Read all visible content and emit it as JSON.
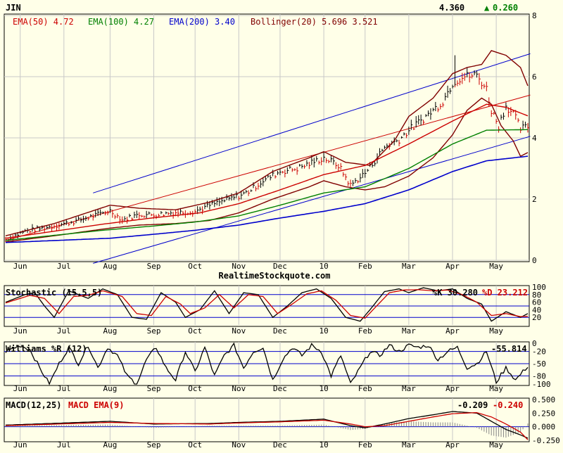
{
  "header": {
    "symbol": "JIN",
    "last_price": "4.360",
    "change_arrow": "▲",
    "change": "0.260"
  },
  "colors": {
    "background": "#FFFFE8",
    "grid": "#C8C8C8",
    "price_bars": "#000000",
    "down_bars": "#CC0000",
    "ema50": "#CC0000",
    "ema100": "#008000",
    "ema200": "#0000CC",
    "bollinger": "#800000",
    "channel": "#0000CC",
    "stoch_k": "#000000",
    "stoch_d": "#CC0000",
    "ref_line": "#0000CC",
    "macd": "#000000",
    "macd_ema": "#CC0000",
    "histogram": "#888888",
    "up_arrow": "#008000"
  },
  "watermark": "RealtimeStockquote.com",
  "x_labels": [
    "Jun",
    "Jul",
    "Aug",
    "Sep",
    "Oct",
    "Nov",
    "Dec",
    "10",
    "Feb",
    "Mar",
    "Apr",
    "May"
  ],
  "x_label_index": [
    6,
    24,
    43,
    61,
    78,
    96,
    113,
    131,
    148,
    166,
    184,
    202
  ],
  "chart_data": [
    {
      "panel": "price",
      "type": "line",
      "legend": [
        {
          "text": "EMA(50) 4.72",
          "color": "#CC0000"
        },
        {
          "text": "EMA(100) 4.27",
          "color": "#008000"
        },
        {
          "text": "EMA(200) 3.40",
          "color": "#0000CC"
        },
        {
          "text": "Bollinger(20) 5.696 3.521",
          "color": "#800000"
        }
      ],
      "ylim": [
        0,
        8
      ],
      "y_ticks": [
        0,
        2,
        4,
        6,
        8
      ],
      "n_points": 216,
      "price_keys": [
        [
          0,
          0.68
        ],
        [
          8,
          0.95
        ],
        [
          20,
          1.12
        ],
        [
          30,
          1.3
        ],
        [
          43,
          1.62
        ],
        [
          48,
          1.32
        ],
        [
          55,
          1.5
        ],
        [
          61,
          1.48
        ],
        [
          68,
          1.55
        ],
        [
          78,
          1.6
        ],
        [
          84,
          1.8
        ],
        [
          90,
          1.95
        ],
        [
          96,
          2.1
        ],
        [
          100,
          2.25
        ],
        [
          106,
          2.6
        ],
        [
          113,
          2.9
        ],
        [
          120,
          3.0
        ],
        [
          128,
          3.25
        ],
        [
          131,
          3.35
        ],
        [
          137,
          3.1
        ],
        [
          142,
          2.45
        ],
        [
          148,
          2.85
        ],
        [
          152,
          3.25
        ],
        [
          156,
          3.7
        ],
        [
          162,
          3.95
        ],
        [
          166,
          4.25
        ],
        [
          170,
          4.5
        ],
        [
          176,
          4.9
        ],
        [
          180,
          5.2
        ],
        [
          184,
          5.8
        ],
        [
          188,
          6.0
        ],
        [
          194,
          6.05
        ],
        [
          198,
          5.6
        ],
        [
          200,
          4.9
        ],
        [
          203,
          4.4
        ],
        [
          206,
          5.05
        ],
        [
          209,
          4.8
        ],
        [
          212,
          4.3
        ],
        [
          215,
          4.36
        ]
      ],
      "ema50_keys": [
        [
          0,
          0.72
        ],
        [
          40,
          1.18
        ],
        [
          60,
          1.38
        ],
        [
          80,
          1.55
        ],
        [
          96,
          1.85
        ],
        [
          113,
          2.3
        ],
        [
          131,
          2.8
        ],
        [
          148,
          3.1
        ],
        [
          166,
          3.8
        ],
        [
          184,
          4.55
        ],
        [
          198,
          5.1
        ],
        [
          206,
          5.0
        ],
        [
          215,
          4.72
        ]
      ],
      "ema100_keys": [
        [
          0,
          0.65
        ],
        [
          40,
          0.98
        ],
        [
          61,
          1.12
        ],
        [
          78,
          1.25
        ],
        [
          96,
          1.45
        ],
        [
          113,
          1.8
        ],
        [
          131,
          2.2
        ],
        [
          148,
          2.4
        ],
        [
          166,
          3.0
        ],
        [
          184,
          3.8
        ],
        [
          198,
          4.25
        ],
        [
          215,
          4.27
        ]
      ],
      "ema200_keys": [
        [
          0,
          0.58
        ],
        [
          43,
          0.72
        ],
        [
          61,
          0.85
        ],
        [
          78,
          0.98
        ],
        [
          96,
          1.15
        ],
        [
          113,
          1.38
        ],
        [
          131,
          1.6
        ],
        [
          148,
          1.85
        ],
        [
          166,
          2.3
        ],
        [
          184,
          2.9
        ],
        [
          198,
          3.25
        ],
        [
          215,
          3.4
        ]
      ],
      "bb_upper_keys": [
        [
          0,
          0.8
        ],
        [
          20,
          1.2
        ],
        [
          43,
          1.8
        ],
        [
          55,
          1.7
        ],
        [
          70,
          1.65
        ],
        [
          84,
          1.9
        ],
        [
          96,
          2.2
        ],
        [
          110,
          2.9
        ],
        [
          125,
          3.35
        ],
        [
          131,
          3.55
        ],
        [
          140,
          3.2
        ],
        [
          150,
          3.1
        ],
        [
          160,
          3.9
        ],
        [
          166,
          4.7
        ],
        [
          176,
          5.3
        ],
        [
          184,
          6.1
        ],
        [
          190,
          6.3
        ],
        [
          196,
          6.4
        ],
        [
          200,
          6.85
        ],
        [
          206,
          6.7
        ],
        [
          212,
          6.3
        ],
        [
          215,
          5.7
        ]
      ],
      "bb_lower_keys": [
        [
          0,
          0.6
        ],
        [
          20,
          0.8
        ],
        [
          43,
          1.05
        ],
        [
          55,
          1.15
        ],
        [
          70,
          1.2
        ],
        [
          84,
          1.3
        ],
        [
          96,
          1.55
        ],
        [
          110,
          2.0
        ],
        [
          125,
          2.4
        ],
        [
          131,
          2.6
        ],
        [
          140,
          2.4
        ],
        [
          148,
          2.3
        ],
        [
          156,
          2.4
        ],
        [
          166,
          2.75
        ],
        [
          176,
          3.35
        ],
        [
          184,
          4.1
        ],
        [
          190,
          4.9
        ],
        [
          196,
          5.3
        ],
        [
          200,
          5.1
        ],
        [
          204,
          4.4
        ],
        [
          209,
          3.9
        ],
        [
          212,
          3.4
        ],
        [
          215,
          3.52
        ]
      ],
      "channel_upper": [
        [
          36,
          2.2
        ],
        [
          216,
          6.75
        ]
      ],
      "channel_mid": [
        [
          0,
          0.65
        ],
        [
          216,
          5.4
        ]
      ],
      "channel_lower": [
        [
          36,
          -0.1
        ],
        [
          216,
          4.05
        ]
      ]
    },
    {
      "panel": "stochastic",
      "type": "line",
      "title": "Stochastic (15,5,5)",
      "legend": [
        {
          "text": "%K 30.280",
          "color": "#000000"
        },
        {
          "text": "%D 23.212",
          "color": "#CC0000"
        }
      ],
      "ylim": [
        0,
        100
      ],
      "y_ticks": [
        20,
        40,
        60,
        80,
        100
      ],
      "ref_lines": [
        20,
        50,
        80
      ],
      "k_keys": [
        [
          0,
          60
        ],
        [
          8,
          80
        ],
        [
          12,
          85
        ],
        [
          16,
          50
        ],
        [
          20,
          20
        ],
        [
          26,
          90
        ],
        [
          34,
          70
        ],
        [
          40,
          95
        ],
        [
          46,
          80
        ],
        [
          52,
          20
        ],
        [
          58,
          15
        ],
        [
          64,
          85
        ],
        [
          70,
          60
        ],
        [
          74,
          20
        ],
        [
          80,
          40
        ],
        [
          86,
          90
        ],
        [
          92,
          30
        ],
        [
          98,
          85
        ],
        [
          104,
          80
        ],
        [
          110,
          20
        ],
        [
          116,
          50
        ],
        [
          122,
          85
        ],
        [
          128,
          95
        ],
        [
          134,
          70
        ],
        [
          140,
          20
        ],
        [
          146,
          10
        ],
        [
          150,
          40
        ],
        [
          156,
          88
        ],
        [
          162,
          95
        ],
        [
          166,
          85
        ],
        [
          172,
          98
        ],
        [
          178,
          90
        ],
        [
          184,
          95
        ],
        [
          190,
          70
        ],
        [
          196,
          55
        ],
        [
          200,
          10
        ],
        [
          206,
          35
        ],
        [
          212,
          20
        ],
        [
          215,
          30
        ]
      ],
      "d_keys": [
        [
          0,
          58
        ],
        [
          10,
          78
        ],
        [
          16,
          70
        ],
        [
          22,
          30
        ],
        [
          28,
          75
        ],
        [
          34,
          78
        ],
        [
          40,
          90
        ],
        [
          48,
          75
        ],
        [
          54,
          30
        ],
        [
          60,
          25
        ],
        [
          66,
          75
        ],
        [
          72,
          55
        ],
        [
          76,
          30
        ],
        [
          82,
          45
        ],
        [
          88,
          80
        ],
        [
          94,
          45
        ],
        [
          100,
          80
        ],
        [
          106,
          75
        ],
        [
          112,
          30
        ],
        [
          118,
          55
        ],
        [
          124,
          82
        ],
        [
          130,
          90
        ],
        [
          136,
          65
        ],
        [
          142,
          25
        ],
        [
          148,
          18
        ],
        [
          152,
          45
        ],
        [
          158,
          85
        ],
        [
          164,
          92
        ],
        [
          170,
          93
        ],
        [
          176,
          90
        ],
        [
          182,
          92
        ],
        [
          188,
          80
        ],
        [
          194,
          60
        ],
        [
          200,
          25
        ],
        [
          206,
          30
        ],
        [
          212,
          22
        ],
        [
          215,
          23
        ]
      ]
    },
    {
      "panel": "williams",
      "type": "line",
      "title": "Williams %R (12)",
      "legend": [
        {
          "text": "-55.814",
          "color": "#000000"
        }
      ],
      "ylim": [
        -100,
        0
      ],
      "y_ticks": [
        0,
        -20,
        -50,
        -80,
        -100
      ],
      "ref_lines": [
        -20,
        -50,
        -80
      ],
      "r_keys": [
        [
          0,
          -20
        ],
        [
          6,
          -5
        ],
        [
          10,
          -15
        ],
        [
          14,
          -60
        ],
        [
          18,
          -100
        ],
        [
          22,
          -50
        ],
        [
          26,
          -10
        ],
        [
          30,
          -50
        ],
        [
          34,
          -5
        ],
        [
          38,
          -60
        ],
        [
          42,
          -10
        ],
        [
          46,
          -30
        ],
        [
          50,
          -80
        ],
        [
          54,
          -100
        ],
        [
          58,
          -40
        ],
        [
          62,
          -10
        ],
        [
          66,
          -60
        ],
        [
          70,
          -90
        ],
        [
          74,
          -20
        ],
        [
          78,
          -70
        ],
        [
          82,
          -10
        ],
        [
          86,
          -80
        ],
        [
          90,
          -30
        ],
        [
          94,
          -5
        ],
        [
          98,
          -60
        ],
        [
          102,
          -20
        ],
        [
          106,
          -10
        ],
        [
          110,
          -90
        ],
        [
          114,
          -40
        ],
        [
          118,
          -10
        ],
        [
          122,
          -30
        ],
        [
          126,
          -5
        ],
        [
          130,
          -20
        ],
        [
          134,
          -80
        ],
        [
          138,
          -30
        ],
        [
          142,
          -100
        ],
        [
          146,
          -60
        ],
        [
          150,
          -20
        ],
        [
          154,
          -30
        ],
        [
          158,
          -5
        ],
        [
          162,
          -20
        ],
        [
          166,
          -5
        ],
        [
          170,
          -10
        ],
        [
          174,
          -5
        ],
        [
          178,
          -40
        ],
        [
          182,
          -20
        ],
        [
          186,
          -10
        ],
        [
          190,
          -60
        ],
        [
          194,
          -50
        ],
        [
          198,
          -20
        ],
        [
          202,
          -95
        ],
        [
          206,
          -60
        ],
        [
          210,
          -90
        ],
        [
          215,
          -56
        ]
      ]
    },
    {
      "panel": "macd",
      "type": "line",
      "title": "MACD(12,25)",
      "legend": [
        {
          "text": "MACD EMA(9)",
          "color": "#CC0000"
        },
        {
          "text": "-0.209",
          "color": "#000000"
        },
        {
          "text": "-0.240",
          "color": "#CC0000"
        }
      ],
      "ylim": [
        -0.25,
        0.5
      ],
      "y_ticks": [
        0.5,
        0.25,
        0,
        -0.25
      ],
      "y_tick_labels": [
        "0.500",
        "0.250",
        "0.000",
        "-0.250"
      ],
      "macd_keys": [
        [
          0,
          0.03
        ],
        [
          43,
          0.1
        ],
        [
          61,
          0.05
        ],
        [
          84,
          0.06
        ],
        [
          96,
          0.08
        ],
        [
          113,
          0.1
        ],
        [
          131,
          0.14
        ],
        [
          142,
          0.02
        ],
        [
          148,
          -0.02
        ],
        [
          156,
          0.05
        ],
        [
          166,
          0.15
        ],
        [
          176,
          0.22
        ],
        [
          184,
          0.28
        ],
        [
          194,
          0.25
        ],
        [
          200,
          0.1
        ],
        [
          206,
          -0.05
        ],
        [
          212,
          -0.15
        ],
        [
          215,
          -0.21
        ]
      ],
      "signal_keys": [
        [
          0,
          0.02
        ],
        [
          43,
          0.08
        ],
        [
          61,
          0.06
        ],
        [
          84,
          0.05
        ],
        [
          96,
          0.07
        ],
        [
          113,
          0.09
        ],
        [
          131,
          0.12
        ],
        [
          142,
          0.05
        ],
        [
          148,
          0.0
        ],
        [
          156,
          0.02
        ],
        [
          166,
          0.1
        ],
        [
          176,
          0.18
        ],
        [
          184,
          0.24
        ],
        [
          194,
          0.26
        ],
        [
          200,
          0.18
        ],
        [
          206,
          0.05
        ],
        [
          212,
          -0.1
        ],
        [
          215,
          -0.24
        ]
      ]
    }
  ]
}
